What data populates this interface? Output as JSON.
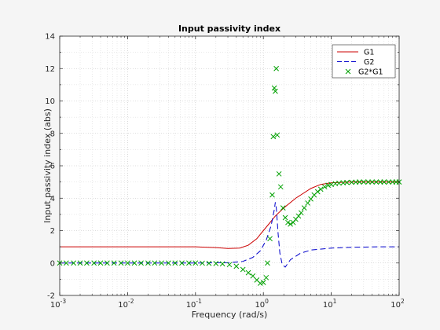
{
  "chart_data": {
    "type": "line",
    "title": "Input passivity index",
    "xlabel": "Frequency (rad/s)",
    "ylabel": "Input passivity index (abs)",
    "xscale": "log",
    "xlim": [
      0.001,
      100
    ],
    "ylim": [
      -2,
      14
    ],
    "grid": true,
    "minor_grid": true,
    "legend_position": "top-right",
    "x_tick_labels": [
      {
        "base": "10",
        "exp": "-3"
      },
      {
        "base": "10",
        "exp": "-2"
      },
      {
        "base": "10",
        "exp": "-1"
      },
      {
        "base": "10",
        "exp": "0"
      },
      {
        "base": "10",
        "exp": "1"
      },
      {
        "base": "10",
        "exp": "2"
      }
    ],
    "y_tick_labels": [
      "-2",
      "0",
      "2",
      "4",
      "6",
      "8",
      "10",
      "12",
      "14"
    ],
    "series": [
      {
        "name": "G1",
        "color": "#cc0000",
        "style": "solid",
        "points": [
          [
            0.001,
            1.0
          ],
          [
            0.01,
            1.0
          ],
          [
            0.1,
            1.0
          ],
          [
            0.2,
            0.95
          ],
          [
            0.3,
            0.9
          ],
          [
            0.45,
            0.92
          ],
          [
            0.6,
            1.1
          ],
          [
            0.8,
            1.5
          ],
          [
            1.0,
            2.0
          ],
          [
            1.2,
            2.4
          ],
          [
            1.5,
            2.9
          ],
          [
            2.0,
            3.4
          ],
          [
            3.0,
            4.0
          ],
          [
            5.0,
            4.6
          ],
          [
            7.0,
            4.85
          ],
          [
            10.0,
            4.95
          ],
          [
            20.0,
            5.0
          ],
          [
            50.0,
            5.0
          ],
          [
            100.0,
            5.0
          ]
        ]
      },
      {
        "name": "G2",
        "color": "#0000cc",
        "style": "dashed",
        "points": [
          [
            0.001,
            0.0
          ],
          [
            0.01,
            0.0
          ],
          [
            0.1,
            0.0
          ],
          [
            0.3,
            0.02
          ],
          [
            0.5,
            0.1
          ],
          [
            0.7,
            0.35
          ],
          [
            0.9,
            0.75
          ],
          [
            1.1,
            1.4
          ],
          [
            1.3,
            2.3
          ],
          [
            1.45,
            3.3
          ],
          [
            1.5,
            3.75
          ],
          [
            1.55,
            3.4
          ],
          [
            1.65,
            1.8
          ],
          [
            1.75,
            0.6
          ],
          [
            1.9,
            -0.1
          ],
          [
            2.1,
            -0.25
          ],
          [
            2.5,
            0.2
          ],
          [
            3.5,
            0.6
          ],
          [
            5.0,
            0.8
          ],
          [
            10.0,
            0.92
          ],
          [
            20.0,
            0.97
          ],
          [
            50.0,
            1.0
          ],
          [
            100.0,
            1.0
          ]
        ]
      },
      {
        "name": "G2*G1",
        "color": "#00a000",
        "style": "markers-x",
        "points": [
          [
            0.001,
            0.0
          ],
          [
            0.00125,
            0.0
          ],
          [
            0.0016,
            0.0
          ],
          [
            0.002,
            0.0
          ],
          [
            0.0025,
            0.0
          ],
          [
            0.0032,
            0.0
          ],
          [
            0.004,
            0.0
          ],
          [
            0.005,
            0.0
          ],
          [
            0.0063,
            0.0
          ],
          [
            0.008,
            0.0
          ],
          [
            0.01,
            0.0
          ],
          [
            0.0126,
            0.0
          ],
          [
            0.0158,
            0.0
          ],
          [
            0.02,
            0.0
          ],
          [
            0.025,
            0.0
          ],
          [
            0.0316,
            0.0
          ],
          [
            0.04,
            0.0
          ],
          [
            0.05,
            0.0
          ],
          [
            0.063,
            0.0
          ],
          [
            0.08,
            0.0
          ],
          [
            0.1,
            0.0
          ],
          [
            0.126,
            -0.01
          ],
          [
            0.158,
            -0.02
          ],
          [
            0.2,
            -0.03
          ],
          [
            0.25,
            -0.05
          ],
          [
            0.316,
            -0.1
          ],
          [
            0.4,
            -0.2
          ],
          [
            0.5,
            -0.4
          ],
          [
            0.6,
            -0.6
          ],
          [
            0.7,
            -0.8
          ],
          [
            0.8,
            -1.05
          ],
          [
            0.9,
            -1.25
          ],
          [
            1.0,
            -1.2
          ],
          [
            1.1,
            -0.9
          ],
          [
            1.15,
            0.0
          ],
          [
            1.25,
            1.5
          ],
          [
            1.35,
            4.2
          ],
          [
            1.4,
            7.8
          ],
          [
            1.45,
            10.8
          ],
          [
            1.5,
            10.6
          ],
          [
            1.55,
            12.0
          ],
          [
            1.6,
            7.9
          ],
          [
            1.7,
            5.5
          ],
          [
            1.8,
            4.7
          ],
          [
            1.95,
            3.4
          ],
          [
            2.1,
            2.8
          ],
          [
            2.3,
            2.5
          ],
          [
            2.5,
            2.4
          ],
          [
            2.75,
            2.5
          ],
          [
            3.0,
            2.7
          ],
          [
            3.3,
            2.9
          ],
          [
            3.6,
            3.1
          ],
          [
            4.0,
            3.4
          ],
          [
            4.5,
            3.7
          ],
          [
            5.0,
            3.95
          ],
          [
            5.6,
            4.2
          ],
          [
            6.3,
            4.4
          ],
          [
            7.0,
            4.55
          ],
          [
            8.0,
            4.7
          ],
          [
            9.0,
            4.8
          ],
          [
            10.0,
            4.85
          ],
          [
            11.5,
            4.9
          ],
          [
            13.0,
            4.93
          ],
          [
            15.0,
            4.95
          ],
          [
            17.0,
            4.97
          ],
          [
            20.0,
            4.98
          ],
          [
            23.0,
            4.99
          ],
          [
            26.0,
            5.0
          ],
          [
            30.0,
            5.0
          ],
          [
            35.0,
            5.0
          ],
          [
            40.0,
            5.0
          ],
          [
            46.0,
            5.0
          ],
          [
            53.0,
            5.0
          ],
          [
            60.0,
            5.0
          ],
          [
            70.0,
            5.0
          ],
          [
            80.0,
            5.0
          ],
          [
            90.0,
            5.0
          ],
          [
            100.0,
            5.0
          ]
        ]
      }
    ]
  }
}
